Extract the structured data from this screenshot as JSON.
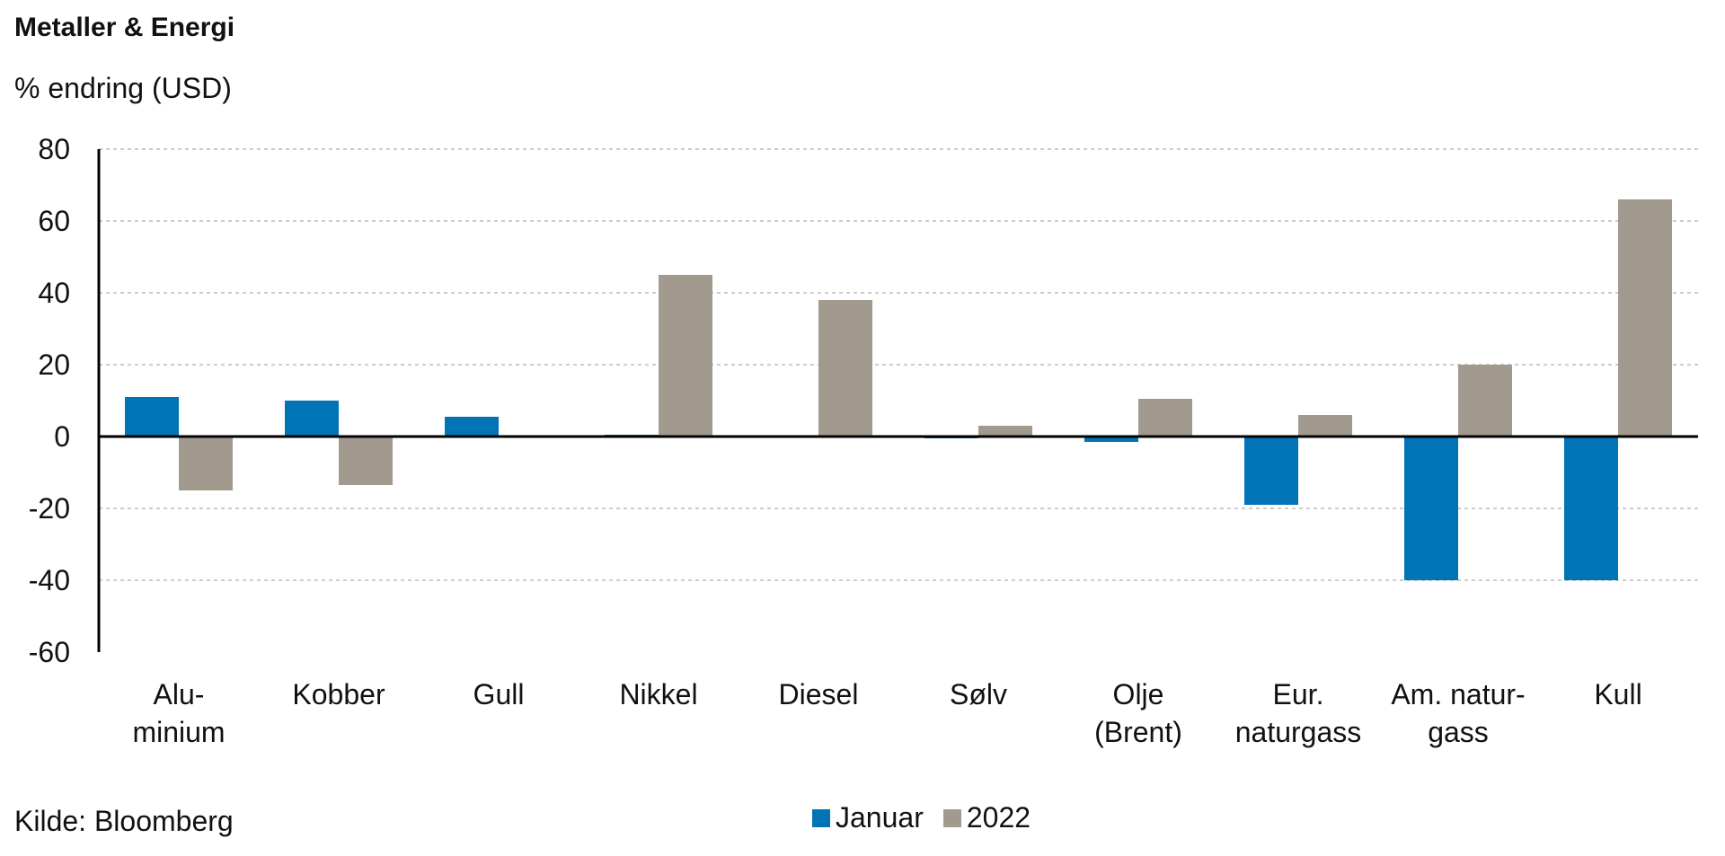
{
  "chart_data": {
    "type": "bar",
    "title": "Metaller & Energi",
    "ylabel": "% endring (USD)",
    "source": "Kilde: Bloomberg",
    "ylim": [
      -60,
      80
    ],
    "yticks": [
      80,
      60,
      40,
      20,
      0,
      -20,
      -40,
      -60
    ],
    "grid": true,
    "legend_position": "bottom",
    "categories": [
      [
        "Alu-",
        "minium"
      ],
      [
        "Kobber"
      ],
      [
        "Gull"
      ],
      [
        "Nikkel"
      ],
      [
        "Diesel"
      ],
      [
        "Sølv"
      ],
      [
        "Olje",
        "(Brent)"
      ],
      [
        "Eur.",
        "naturgass"
      ],
      [
        "Am. natur-",
        "gass"
      ],
      [
        "Kull"
      ]
    ],
    "series": [
      {
        "name": "Januar",
        "color": "#0074B4",
        "values": [
          11,
          10,
          5.5,
          0.5,
          0,
          -0.5,
          -1.5,
          -19,
          -40,
          -40
        ]
      },
      {
        "name": "2022",
        "color": "#A39A8F",
        "values": [
          -15,
          -13.5,
          0,
          45,
          38,
          3,
          10.5,
          6,
          20,
          66
        ]
      }
    ]
  }
}
